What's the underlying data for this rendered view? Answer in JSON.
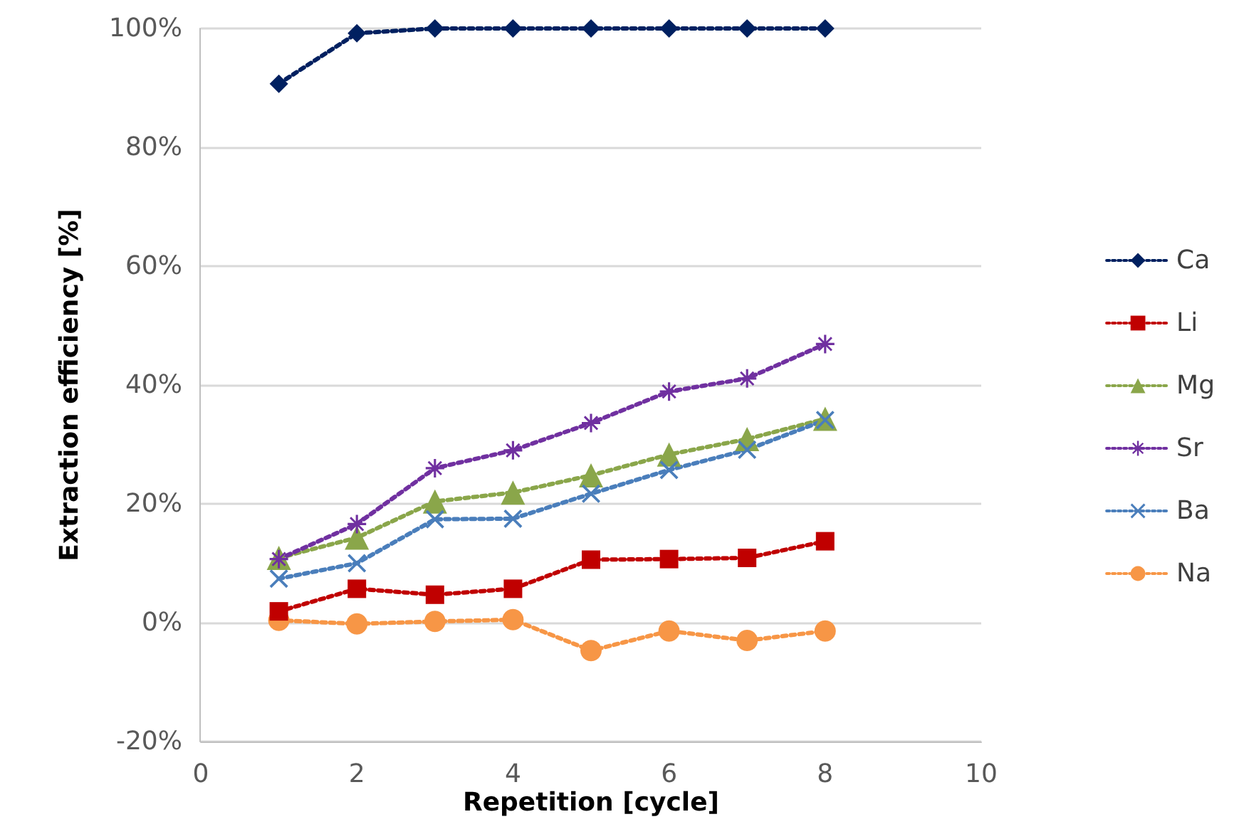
{
  "chart_data": {
    "type": "line",
    "xlabel": "Repetition [cycle]",
    "ylabel": "Extraction efficiency [%]",
    "x": [
      1,
      2,
      3,
      4,
      5,
      6,
      7,
      8
    ],
    "xlim": [
      0,
      10
    ],
    "xticks": [
      0,
      2,
      4,
      6,
      8,
      10
    ],
    "ylim": [
      -20,
      100
    ],
    "yticks": [
      {
        "value": -20,
        "label": "-20%"
      },
      {
        "value": 0,
        "label": "0%"
      },
      {
        "value": 20,
        "label": "20%"
      },
      {
        "value": 40,
        "label": "40%"
      },
      {
        "value": 60,
        "label": "60%"
      },
      {
        "value": 80,
        "label": "80%"
      },
      {
        "value": 100,
        "label": "100%"
      }
    ],
    "grid": "y",
    "legend": "right",
    "line_style": "dotted",
    "series": [
      {
        "name": "Ca",
        "color": "#002060",
        "marker": "diamond",
        "values": [
          90.7,
          99.2,
          100,
          100,
          100,
          100,
          100,
          100
        ]
      },
      {
        "name": "Li",
        "color": "#c00000",
        "marker": "square",
        "values": [
          1.9,
          5.7,
          4.7,
          5.7,
          10.6,
          10.7,
          10.9,
          13.7
        ]
      },
      {
        "name": "Mg",
        "color": "#8aa64a",
        "marker": "triangle",
        "values": [
          10.9,
          14.3,
          20.4,
          21.9,
          24.8,
          28.3,
          30.9,
          34.3
        ]
      },
      {
        "name": "Sr",
        "color": "#7030a0",
        "marker": "star",
        "values": [
          10.7,
          16.6,
          26,
          29,
          33.6,
          38.9,
          41.1,
          46.9
        ]
      },
      {
        "name": "Ba",
        "color": "#4a7ebb",
        "marker": "cross",
        "values": [
          7.4,
          10,
          17.4,
          17.5,
          21.7,
          25.7,
          29.1,
          34.1
        ]
      },
      {
        "name": "Na",
        "color": "#f79646",
        "marker": "circle",
        "values": [
          0.4,
          -0.2,
          0.2,
          0.5,
          -4.7,
          -1.4,
          -3,
          -1.4
        ]
      }
    ]
  }
}
